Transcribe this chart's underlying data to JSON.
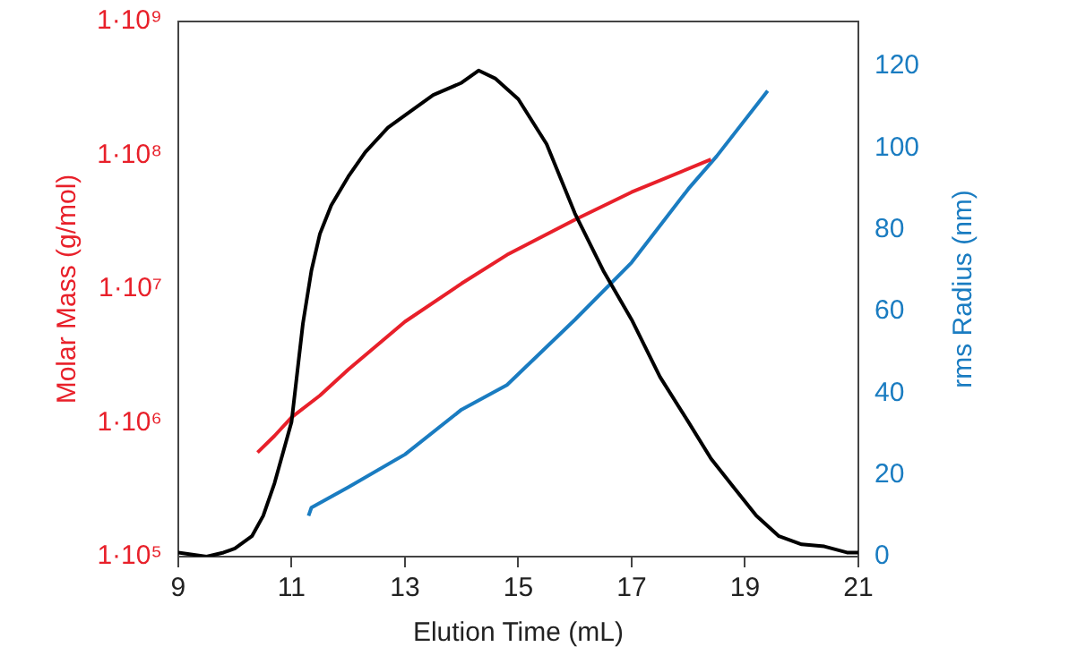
{
  "chart_data": {
    "type": "line",
    "xlabel": "Elution Time (mL)",
    "ylabel": "Molar Mass (g/mol)",
    "y2label": "rms Radius (nm)",
    "xlim": [
      9,
      21
    ],
    "xticks": [
      9,
      11,
      13,
      15,
      17,
      19,
      21
    ],
    "ylim": [
      100000,
      1000000000
    ],
    "yticks": [
      {
        "value": 100000,
        "label": "1·10⁵"
      },
      {
        "value": 1000000,
        "label": "1·10⁶"
      },
      {
        "value": 10000000,
        "label": "1·10⁷"
      },
      {
        "value": 100000000,
        "label": "1·10⁸"
      },
      {
        "value": 1000000000,
        "label": "1·10⁹"
      }
    ],
    "y2lim": [
      0,
      131
    ],
    "y2ticks": [
      0,
      20,
      40,
      60,
      80,
      100,
      120
    ],
    "log": "y",
    "grid": false,
    "legend": false,
    "series": [
      {
        "color": "#000000",
        "axis": "y2",
        "x": [
          9.0,
          9.5,
          9.8,
          10.0,
          10.3,
          10.5,
          10.7,
          10.9,
          11.0,
          11.1,
          11.2,
          11.35,
          11.5,
          11.7,
          12.0,
          12.3,
          12.7,
          13.0,
          13.5,
          14.0,
          14.3,
          14.6,
          15.0,
          15.5,
          16.0,
          16.5,
          17.0,
          17.5,
          18.0,
          18.4,
          18.8,
          19.2,
          19.6,
          20.0,
          20.4,
          20.8,
          21.0
        ],
        "values": [
          1,
          0,
          1,
          2,
          5,
          10,
          18,
          28,
          33,
          45,
          57,
          70,
          79,
          86,
          93,
          99,
          105,
          108,
          113,
          116,
          119,
          117,
          112,
          101,
          84,
          70,
          58,
          44,
          33,
          24,
          17,
          10,
          5,
          3,
          2.5,
          1,
          1
        ]
      },
      {
        "color": "#e8202a",
        "axis": "y",
        "x": [
          10.4,
          10.7,
          11.0,
          11.5,
          12.0,
          13.0,
          14.0,
          14.8,
          16.0,
          17.0,
          18.4
        ],
        "values": [
          600000,
          800000,
          1100000,
          1600000,
          2500000,
          5700000,
          11000000,
          18000000,
          33000000,
          53000000,
          93000000
        ]
      },
      {
        "color": "#1a7cc1",
        "axis": "y2",
        "x": [
          11.3,
          11.35,
          12.0,
          13.0,
          14.0,
          14.8,
          16.0,
          17.0,
          18.0,
          18.5,
          19.4
        ],
        "values": [
          10,
          12,
          17,
          25,
          36,
          42,
          58,
          72,
          90,
          98,
          114
        ]
      }
    ]
  }
}
